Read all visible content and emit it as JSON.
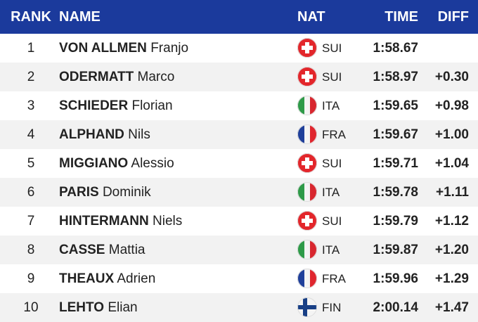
{
  "table": {
    "header": [
      "RANK",
      "NAME",
      "NAT",
      "TIME",
      "DIFF"
    ],
    "rows": [
      {
        "rank": 1,
        "surname": "VON ALLMEN",
        "first": "Franjo",
        "nat": "SUI",
        "time": "1:58.67"
      },
      {
        "rank": 2,
        "surname": "ODERMATT",
        "first": "Marco",
        "nat": "SUI",
        "time": "1:58.97",
        "diff": "+0.30"
      },
      {
        "rank": 3,
        "surname": "SCHIEDER",
        "first": "Florian",
        "nat": "ITA",
        "time": "1:59.65",
        "diff": "+0.98"
      },
      {
        "rank": 4,
        "surname": "ALPHAND",
        "first": "Nils",
        "nat": "FRA",
        "time": "1:59.67",
        "diff": "+1.00"
      },
      {
        "rank": 5,
        "surname": "MIGGIANO",
        "first": "Alessio",
        "nat": "SUI",
        "time": "1:59.71",
        "diff": "+1.04"
      },
      {
        "rank": 6,
        "surname": "PARIS",
        "first": "Dominik",
        "nat": "ITA",
        "time": "1:59.78",
        "diff": "+1.11"
      },
      {
        "rank": 7,
        "surname": "HINTERMANN",
        "first": "Niels",
        "nat": "SUI",
        "time": "1:59.79",
        "diff": "+1.12"
      },
      {
        "rank": 8,
        "surname": "CASSE",
        "first": "Mattia",
        "nat": "ITA",
        "time": "1:59.87",
        "diff": "+1.20"
      },
      {
        "rank": 9,
        "surname": "THEAUX",
        "first": "Adrien",
        "nat": "FRA",
        "time": "1:59.96",
        "diff": "+1.29"
      },
      {
        "rank": 10,
        "surname": "LEHTO",
        "first": "Elian",
        "nat": "FIN",
        "time": "2:00.14",
        "diff": "+1.47"
      }
    ]
  }
}
